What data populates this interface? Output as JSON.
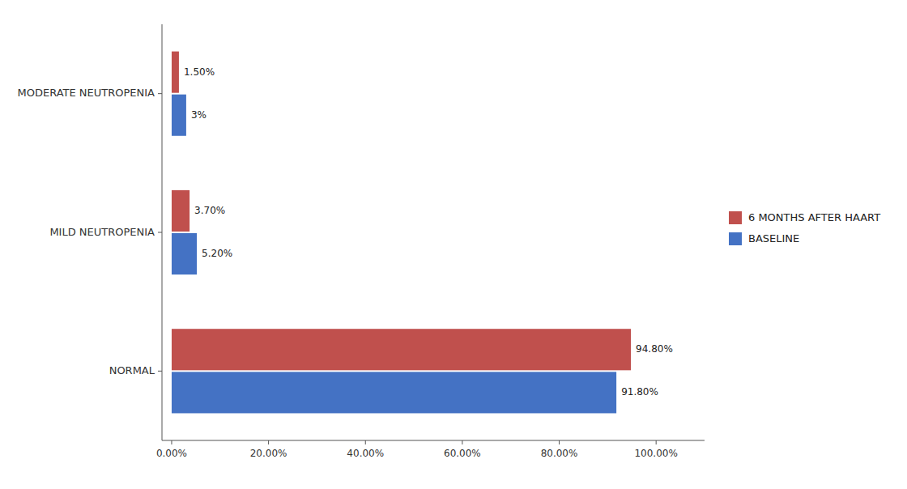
{
  "chart_data": {
    "type": "bar",
    "orientation": "horizontal",
    "categories": [
      "NORMAL",
      "MILD NEUTROPENIA",
      "MODERATE NEUTROPENIA"
    ],
    "series": [
      {
        "name": "6 MONTHS AFTER HAART",
        "color": "#C0504D",
        "values": [
          94.8,
          3.7,
          1.5
        ],
        "value_labels": [
          "94.80%",
          "3.70%",
          "1.50%"
        ]
      },
      {
        "name": "BASELINE",
        "color": "#4472C4",
        "values": [
          91.8,
          5.2,
          3.0
        ],
        "value_labels": [
          "91.80%",
          "5.20%",
          "3%"
        ]
      }
    ],
    "xlim": [
      -2,
      110
    ],
    "xticks": [
      {
        "value": 0,
        "label": "0.00%"
      },
      {
        "value": 20,
        "label": "20.00%"
      },
      {
        "value": 40,
        "label": "40.00%"
      },
      {
        "value": 60,
        "label": "60.00%"
      },
      {
        "value": 80,
        "label": "80.00%"
      },
      {
        "value": 100,
        "label": "100.00%"
      }
    ],
    "data_labels": true,
    "legend": "right",
    "grid": false
  }
}
